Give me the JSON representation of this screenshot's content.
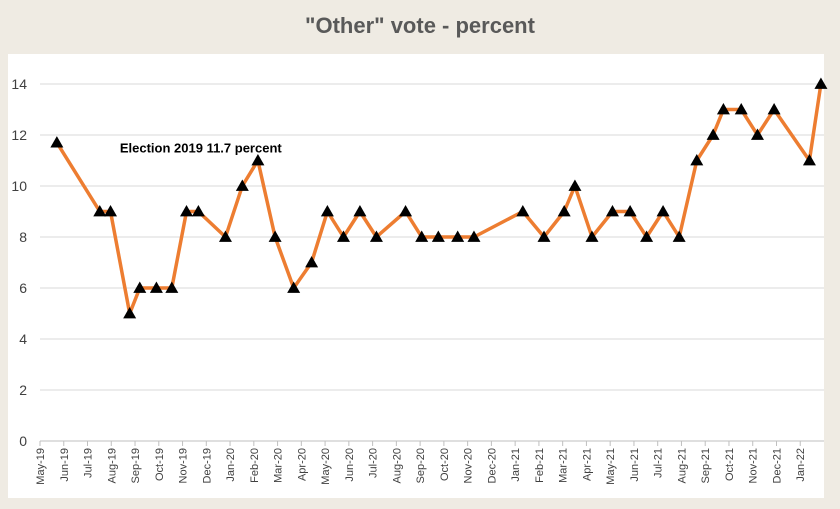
{
  "chart_data": {
    "type": "line",
    "title": "\"Other\" vote - percent",
    "xlabel": "",
    "ylabel": "",
    "ylim": [
      0,
      14
    ],
    "yticks": [
      0,
      2,
      4,
      6,
      8,
      10,
      12,
      14
    ],
    "grid": true,
    "legend": "none",
    "line_color": "#ed7d31",
    "marker_color": "#000000",
    "marker": "triangle",
    "x_tick_labels": [
      "May-19",
      "Jun-19",
      "Jul-19",
      "Aug-19",
      "Sep-19",
      "Oct-19",
      "Nov-19",
      "Dec-19",
      "Jan-20",
      "Feb-20",
      "Mar-20",
      "Apr-20",
      "May-20",
      "Jun-20",
      "Jul-20",
      "Aug-20",
      "Sep-20",
      "Oct-20",
      "Nov-20",
      "Dec-20",
      "Jan-21",
      "Feb-21",
      "Mar-21",
      "Apr-21",
      "May-21",
      "Jun-21",
      "Jul-21",
      "Aug-21",
      "Sep-21",
      "Oct-21",
      "Nov-21",
      "Dec-21",
      "Jan-22"
    ],
    "x": [
      "2019-05-23",
      "2019-07-17",
      "2019-07-31",
      "2019-08-25",
      "2019-09-07",
      "2019-09-28",
      "2019-10-18",
      "2019-11-06",
      "2019-11-21",
      "2019-12-26",
      "2020-01-17",
      "2020-02-06",
      "2020-02-27",
      "2020-03-22",
      "2020-04-14",
      "2020-05-04",
      "2020-05-25",
      "2020-06-15",
      "2020-07-06",
      "2020-08-13",
      "2020-09-03",
      "2020-09-24",
      "2020-10-19",
      "2020-11-09",
      "2021-01-11",
      "2021-02-07",
      "2021-03-03",
      "2021-03-17",
      "2021-04-08",
      "2021-05-04",
      "2021-05-27",
      "2021-06-17",
      "2021-07-08",
      "2021-07-29",
      "2021-08-21",
      "2021-09-11",
      "2021-09-24",
      "2021-10-17",
      "2021-11-07",
      "2021-11-28",
      "2022-01-13",
      "2022-01-28"
    ],
    "series": [
      {
        "values": [
          11.7,
          9,
          9,
          5,
          6,
          6,
          6,
          9,
          9,
          8,
          10,
          11,
          8,
          6,
          7,
          9,
          8,
          9,
          8,
          9,
          8,
          8,
          8,
          8,
          9,
          8,
          9,
          10,
          8,
          9,
          9,
          8,
          9,
          8,
          11,
          12,
          13,
          13,
          12,
          13,
          11,
          14
        ]
      }
    ],
    "annotations": [
      {
        "text": "Election 2019 11.7 percent",
        "x": "2019-05-23",
        "y": 11.7
      }
    ]
  }
}
